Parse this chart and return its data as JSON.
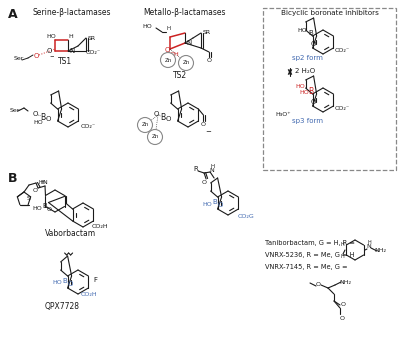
{
  "background_color": "#ffffff",
  "text_color": "#1a1a1a",
  "blue_color": "#4169b0",
  "red_color": "#cc2222",
  "gray_color": "#888888",
  "bond_color": "#1a1a1a",
  "panel_A": "A",
  "panel_B": "B",
  "title1": "Serine-β-lactamases",
  "title2": "Metallo-β-lactamases",
  "box_title": "Bicyclic boronate inhibitors",
  "ts1": "TS1",
  "ts2": "TS2",
  "sp2": "sp2 form",
  "sp3": "sp3 form",
  "eq_label": "2 H₂O",
  "vaborbactam": "Vaborbactam",
  "qpx": "QPX7728",
  "tani_line": "Taniborbactam, G = H, R =",
  "vnrx5_line": "VNRX-5236, R = Me, G = H",
  "vnrx7_line": "VNRX-7145, R = Me, G ="
}
